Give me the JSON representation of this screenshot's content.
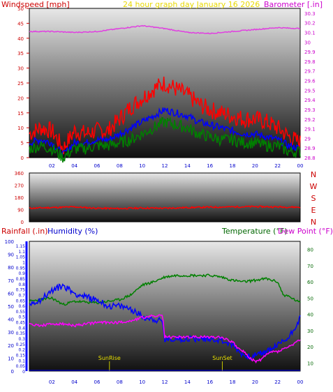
{
  "chart_data": [
    {
      "type": "line",
      "title": "24 hour graph day   January 16 2026",
      "left_axis_label": "Windspeed [mph]",
      "right_axis_label": "Barometer [.in]",
      "y_left_ticks": [
        "0",
        "5",
        "10",
        "15",
        "20",
        "25",
        "30",
        "35",
        "40",
        "45",
        "50"
      ],
      "y_right_ticks": [
        "28.8",
        "28.9",
        "29",
        "29.1",
        "29.2",
        "29.3",
        "29.4",
        "29.5",
        "29.6",
        "29.7",
        "29.8",
        "29.9",
        "30",
        "30.1",
        "30.2",
        "30.3"
      ],
      "x_ticks": [
        "02",
        "04",
        "06",
        "08",
        "10",
        "12",
        "14",
        "16",
        "18",
        "20",
        "22",
        "00"
      ],
      "ylim_left": [
        0,
        50
      ],
      "ylim_right": [
        28.8,
        30.35
      ],
      "series": [
        {
          "key": "gust",
          "color": "#ff0000",
          "x": [
            0,
            1,
            2,
            3,
            4,
            5,
            6,
            7,
            8,
            9,
            10,
            11,
            12,
            13,
            14,
            15,
            16,
            17,
            18,
            19,
            20,
            21,
            22,
            23,
            24
          ],
          "y": [
            8,
            10,
            9,
            3,
            9,
            8,
            9,
            9,
            13,
            17,
            20,
            23,
            25,
            23,
            21,
            18,
            16,
            15,
            14,
            13,
            13,
            12,
            10,
            7,
            5
          ]
        },
        {
          "key": "avg",
          "color": "#0000ff",
          "x": [
            0,
            1,
            2,
            3,
            4,
            5,
            6,
            7,
            8,
            9,
            10,
            11,
            12,
            13,
            14,
            15,
            16,
            17,
            18,
            19,
            20,
            21,
            22,
            23,
            24
          ],
          "y": [
            5,
            6,
            5,
            1,
            5,
            5,
            6,
            6,
            8,
            10,
            12,
            14,
            16,
            15,
            14,
            12,
            11,
            10,
            9,
            8,
            8,
            7,
            6,
            4,
            3
          ]
        },
        {
          "key": "wind",
          "color": "#008000",
          "x": [
            0,
            1,
            2,
            3,
            4,
            5,
            6,
            7,
            8,
            9,
            10,
            11,
            12,
            13,
            14,
            15,
            16,
            17,
            18,
            19,
            20,
            21,
            22,
            23,
            24
          ],
          "y": [
            3,
            4,
            3,
            0,
            3,
            3,
            4,
            4,
            5,
            6,
            8,
            10,
            12,
            11,
            10,
            8,
            7,
            6,
            6,
            5,
            5,
            4,
            4,
            2,
            2
          ]
        },
        {
          "key": "baro",
          "color": "#e040e0",
          "axis": "right",
          "x": [
            0,
            2,
            4,
            6,
            8,
            10,
            12,
            14,
            16,
            18,
            20,
            22,
            24
          ],
          "y": [
            30.11,
            30.11,
            30.1,
            30.11,
            30.14,
            30.17,
            30.14,
            30.1,
            30.09,
            30.11,
            30.13,
            30.15,
            30.14
          ]
        }
      ]
    },
    {
      "type": "line",
      "title": "",
      "y_left_ticks": [
        "0",
        "90",
        "180",
        "270",
        "360"
      ],
      "direction_labels": [
        "N",
        "W",
        "S",
        "E",
        "N"
      ],
      "x_ticks": [
        "02",
        "04",
        "06",
        "08",
        "10",
        "12",
        "14",
        "16",
        "18",
        "20",
        "22",
        "00"
      ],
      "ylim": [
        0,
        360
      ],
      "series": [
        {
          "key": "dir",
          "color": "#ff0000",
          "x": [
            0,
            2,
            4,
            6,
            8,
            10,
            12,
            14,
            16,
            18,
            20,
            22,
            24
          ],
          "y": [
            100,
            105,
            110,
            100,
            98,
            102,
            100,
            105,
            108,
            110,
            112,
            110,
            108
          ]
        }
      ]
    },
    {
      "type": "line",
      "title": "",
      "rain_label": "Rainfall (.in)",
      "humidity_label": "Humidity (%)",
      "temp_label": "Temperature (°F)",
      "dew_label": "Dew Point (°F)",
      "y_rain_ticks": [
        "0",
        "0.05",
        "0.1",
        "0.15",
        "0.2",
        "0.25",
        "0.3",
        "0.35",
        "0.4",
        "0.45",
        "0.5",
        "0.55",
        "0.6",
        "0.65",
        "0.7",
        "0.75",
        "0.8",
        "0.85",
        "0.9",
        "0.95",
        "1",
        "1.05",
        "1.1",
        "1.15"
      ],
      "y_humidity_ticks": [
        "0",
        "10",
        "20",
        "30",
        "40",
        "50",
        "60",
        "70",
        "80",
        "90",
        "100"
      ],
      "y_temp_ticks": [
        "10",
        "20",
        "30",
        "40",
        "50",
        "60",
        "70",
        "80"
      ],
      "x_ticks": [
        "02",
        "04",
        "06",
        "08",
        "10",
        "12",
        "14",
        "16",
        "18",
        "20",
        "22",
        "00"
      ],
      "ylim_temp": [
        5,
        85
      ],
      "ylim_humidity": [
        0,
        100
      ],
      "annotations": [
        {
          "text": "SunRise",
          "x": 7.1
        },
        {
          "text": "SunSet",
          "x": 17.1
        }
      ],
      "series": [
        {
          "key": "temp",
          "color": "#008000",
          "axis": "temp",
          "x": [
            0,
            2,
            3,
            4,
            6,
            8,
            9,
            10,
            11,
            12,
            13,
            14,
            15,
            16,
            17,
            18,
            19,
            20,
            21,
            22,
            22.5,
            23,
            24
          ],
          "y": [
            48,
            50,
            46,
            48,
            47,
            49,
            52,
            58,
            60,
            63,
            64,
            64,
            64,
            64,
            63,
            61,
            60,
            61,
            62,
            60,
            52,
            51,
            47
          ]
        },
        {
          "key": "humidity",
          "color": "#0000ff",
          "axis": "humidity",
          "x": [
            0,
            1,
            2,
            3,
            4,
            5,
            6,
            7,
            8,
            9,
            10,
            11,
            11.8,
            12,
            13,
            14,
            15,
            16,
            17,
            18,
            19,
            19.5,
            20,
            21,
            22,
            23,
            24
          ],
          "y": [
            52,
            55,
            62,
            66,
            60,
            57,
            55,
            50,
            50,
            48,
            42,
            40,
            38,
            24,
            25,
            25,
            25,
            25,
            24,
            20,
            12,
            11,
            12,
            15,
            20,
            26,
            41
          ]
        },
        {
          "key": "dew",
          "color": "#ff00ff",
          "axis": "temp",
          "x": [
            0,
            1,
            2,
            3,
            4,
            5,
            6,
            7,
            8,
            9,
            10,
            11,
            11.8,
            12,
            13,
            14,
            15,
            16,
            17,
            18,
            18.5,
            19,
            19.5,
            20,
            20.5,
            21,
            21.5,
            22,
            23,
            24
          ],
          "y": [
            34,
            33,
            34,
            34,
            33,
            34,
            35,
            35,
            35,
            36,
            38,
            39,
            39,
            26,
            26,
            26,
            26,
            26,
            26,
            23,
            19,
            17,
            13,
            11,
            12,
            15,
            17,
            17,
            20,
            24
          ]
        },
        {
          "key": "rain",
          "color": "#0000ff",
          "axis": "rain",
          "x": [
            0,
            24
          ],
          "y": [
            0,
            0
          ]
        }
      ]
    }
  ]
}
